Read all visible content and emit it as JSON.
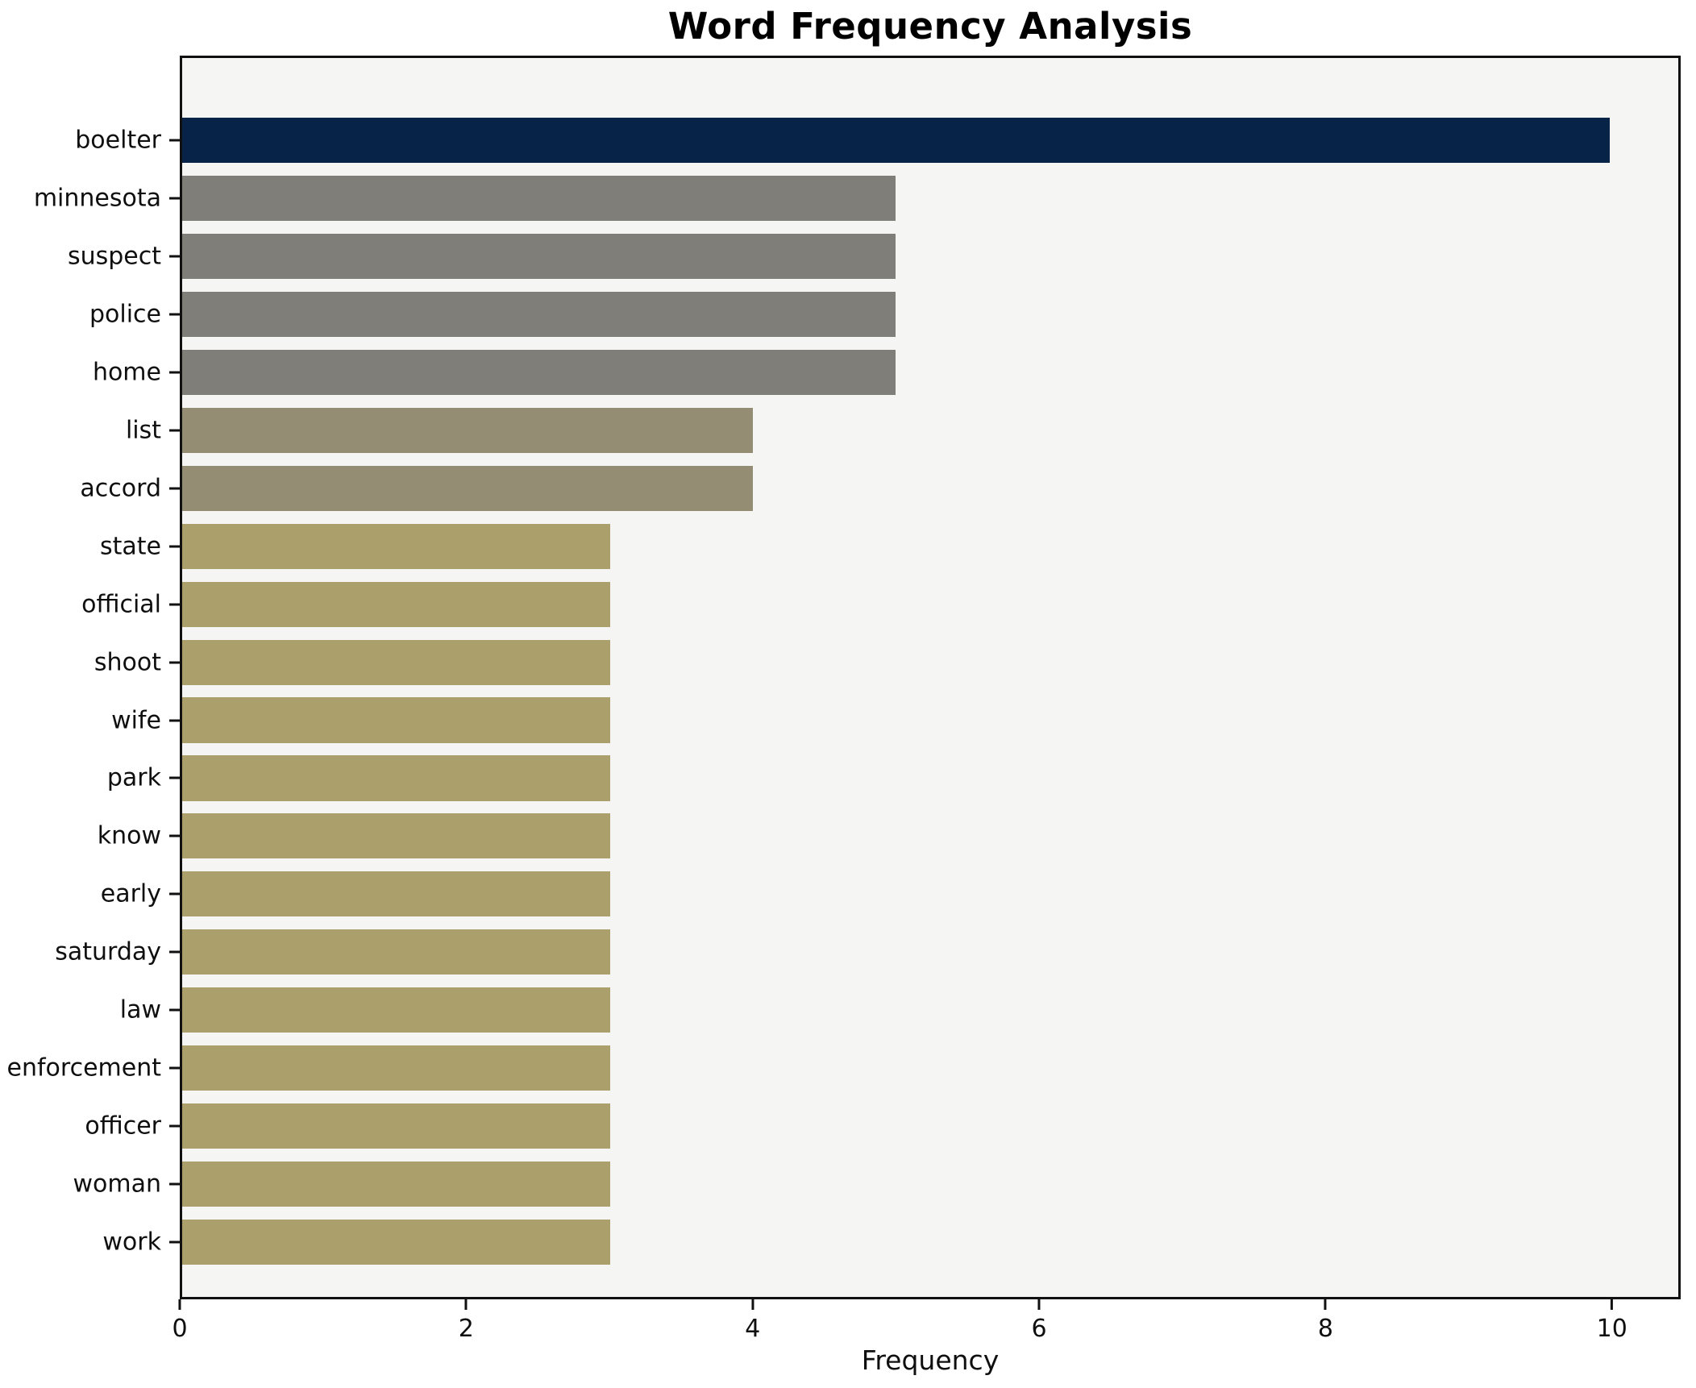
{
  "chart_data": {
    "type": "bar",
    "orientation": "horizontal",
    "title": "Word Frequency Analysis",
    "xlabel": "Frequency",
    "categories": [
      "boelter",
      "minnesota",
      "suspect",
      "police",
      "home",
      "list",
      "accord",
      "state",
      "official",
      "shoot",
      "wife",
      "park",
      "know",
      "early",
      "saturday",
      "law",
      "enforcement",
      "officer",
      "woman",
      "work"
    ],
    "values": [
      10,
      5,
      5,
      5,
      5,
      4,
      4,
      3,
      3,
      3,
      3,
      3,
      3,
      3,
      3,
      3,
      3,
      3,
      3,
      3
    ],
    "bar_colors": [
      "#072347",
      "#7f7e79",
      "#7f7e79",
      "#7f7e79",
      "#7f7e79",
      "#948c73",
      "#948c73",
      "#ab9f6b",
      "#ab9f6b",
      "#ab9f6b",
      "#ab9f6b",
      "#ab9f6b",
      "#ab9f6b",
      "#ab9f6b",
      "#ab9f6b",
      "#ab9f6b",
      "#ab9f6b",
      "#ab9f6b",
      "#ab9f6b",
      "#ab9f6b"
    ],
    "xticks": [
      0,
      2,
      4,
      6,
      8,
      10
    ],
    "xlim": [
      0,
      10.48
    ],
    "grid": false,
    "legend_visible": false,
    "plot_background": "#f5f5f3",
    "figure_background": "#ffffff",
    "title_color": "#000000",
    "axis_text_color": "#0f0f0f"
  }
}
